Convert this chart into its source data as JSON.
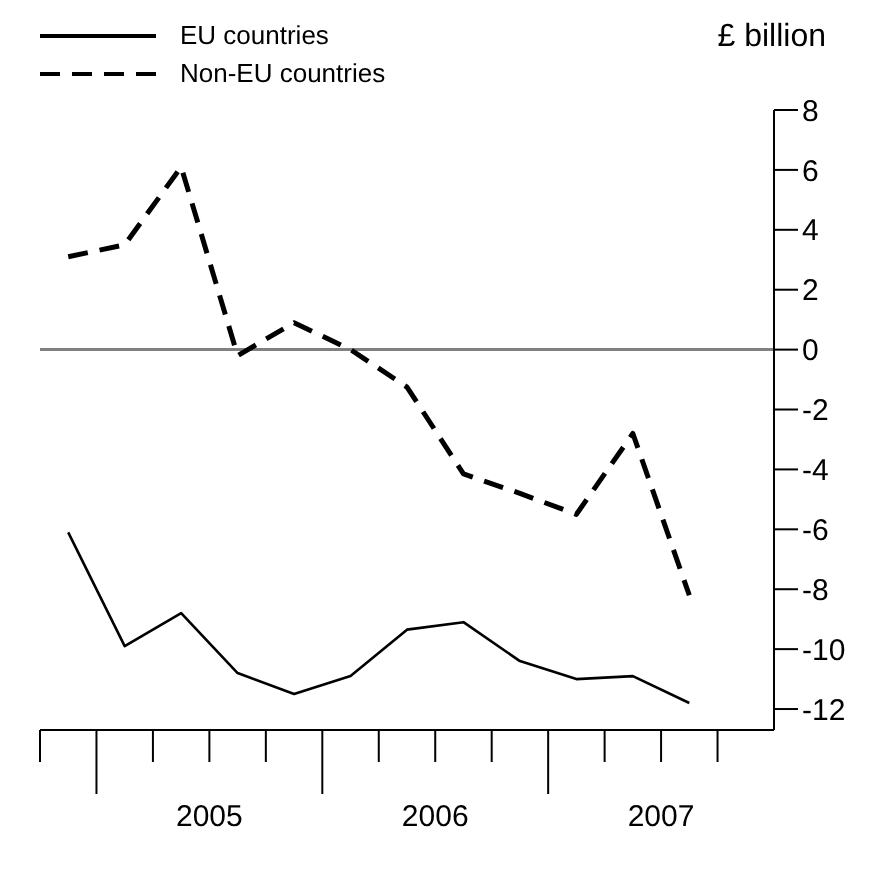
{
  "chart_data": {
    "type": "line",
    "ylabel": "£ billion",
    "x": [
      2004.875,
      2005.125,
      2005.375,
      2005.625,
      2005.875,
      2006.125,
      2006.375,
      2006.625,
      2006.875,
      2007.125,
      2007.375,
      2007.625
    ],
    "xlim": [
      2004.75,
      2008.0
    ],
    "xticks": [
      {
        "value": 2004.75,
        "label": null
      },
      {
        "value": 2005,
        "label": null
      },
      {
        "value": 2005.25,
        "label": null
      },
      {
        "value": 2005.5,
        "label": "2005"
      },
      {
        "value": 2005.75,
        "label": null
      },
      {
        "value": 2006,
        "label": null
      },
      {
        "value": 2006.25,
        "label": null
      },
      {
        "value": 2006.5,
        "label": "2006"
      },
      {
        "value": 2006.75,
        "label": null
      },
      {
        "value": 2007,
        "label": null
      },
      {
        "value": 2007.25,
        "label": null
      },
      {
        "value": 2007.5,
        "label": "2007"
      },
      {
        "value": 2007.75,
        "label": null
      }
    ],
    "ylim": [
      -12.7,
      8
    ],
    "yticks": [
      -12,
      -10,
      -8,
      -6,
      -4,
      -2,
      0,
      2,
      4,
      6,
      8
    ],
    "series": [
      {
        "name": "EU countries",
        "color": "#000000",
        "line_style": "solid",
        "values": [
          -6.1,
          -9.9,
          -8.8,
          -10.8,
          -11.5,
          -10.9,
          -9.35,
          -9.1,
          -10.4,
          -11.0,
          -10.9,
          -11.8
        ]
      },
      {
        "name": "Non-EU countries",
        "color": "#000000",
        "line_style": "dashed",
        "values": [
          3.1,
          3.5,
          6.1,
          -0.2,
          0.9,
          0.0,
          -1.25,
          -4.15,
          -4.8,
          -5.5,
          -2.8,
          -8.2
        ]
      }
    ],
    "ref_lines": [
      {
        "axis": "y",
        "value": 0,
        "color": "#808080"
      }
    ],
    "legend": "top left",
    "grid": false,
    "marker": "none"
  }
}
